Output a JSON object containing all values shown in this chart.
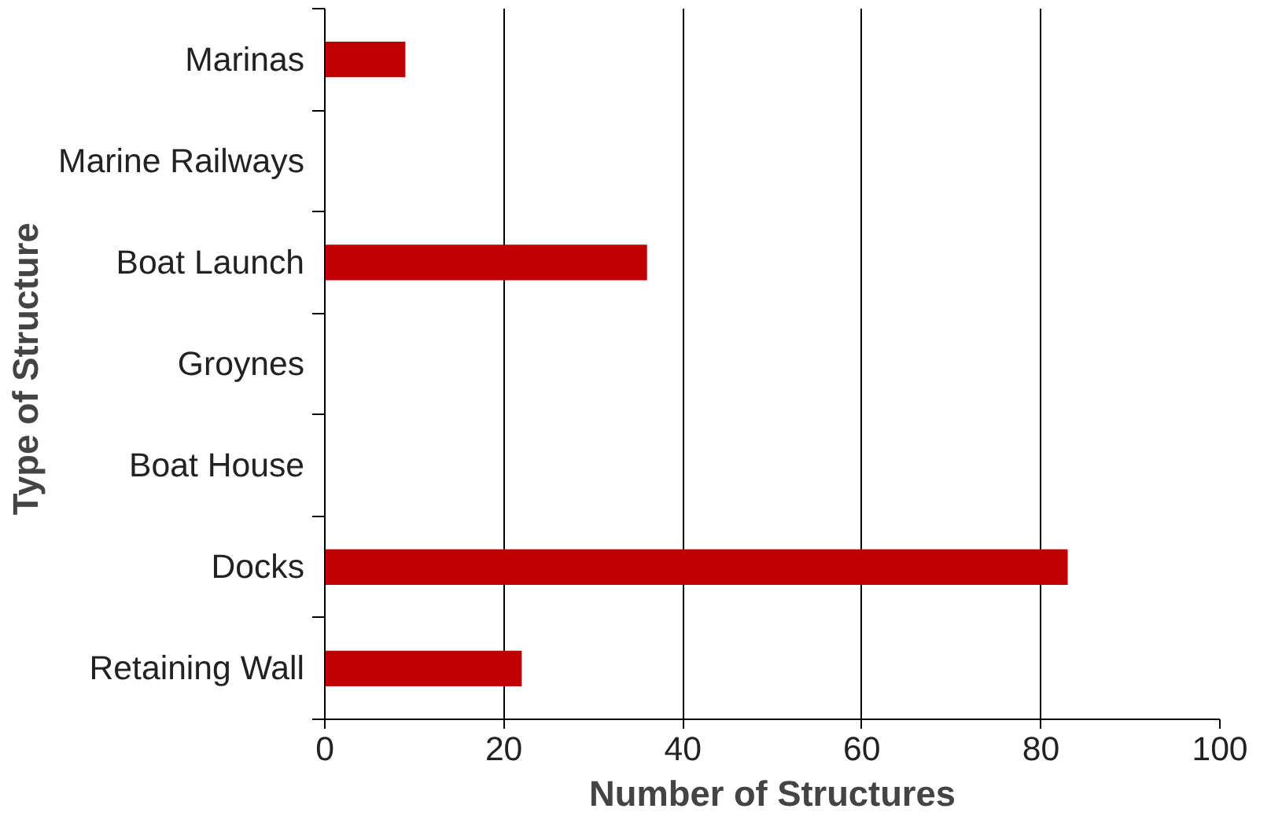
{
  "chart_data": {
    "type": "bar",
    "orientation": "horizontal",
    "categories": [
      "Marinas",
      "Marine Railways",
      "Boat Launch",
      "Groynes",
      "Boat House",
      "Docks",
      "Retaining Wall"
    ],
    "values": [
      9,
      0,
      36,
      0,
      0,
      83,
      22
    ],
    "color": "#c00000",
    "xlabel": "Number of Structures",
    "ylabel": "Type of  Structure",
    "xlim": [
      0,
      100
    ],
    "xticks": [
      0,
      20,
      40,
      60,
      80,
      100
    ],
    "grid": "x"
  }
}
